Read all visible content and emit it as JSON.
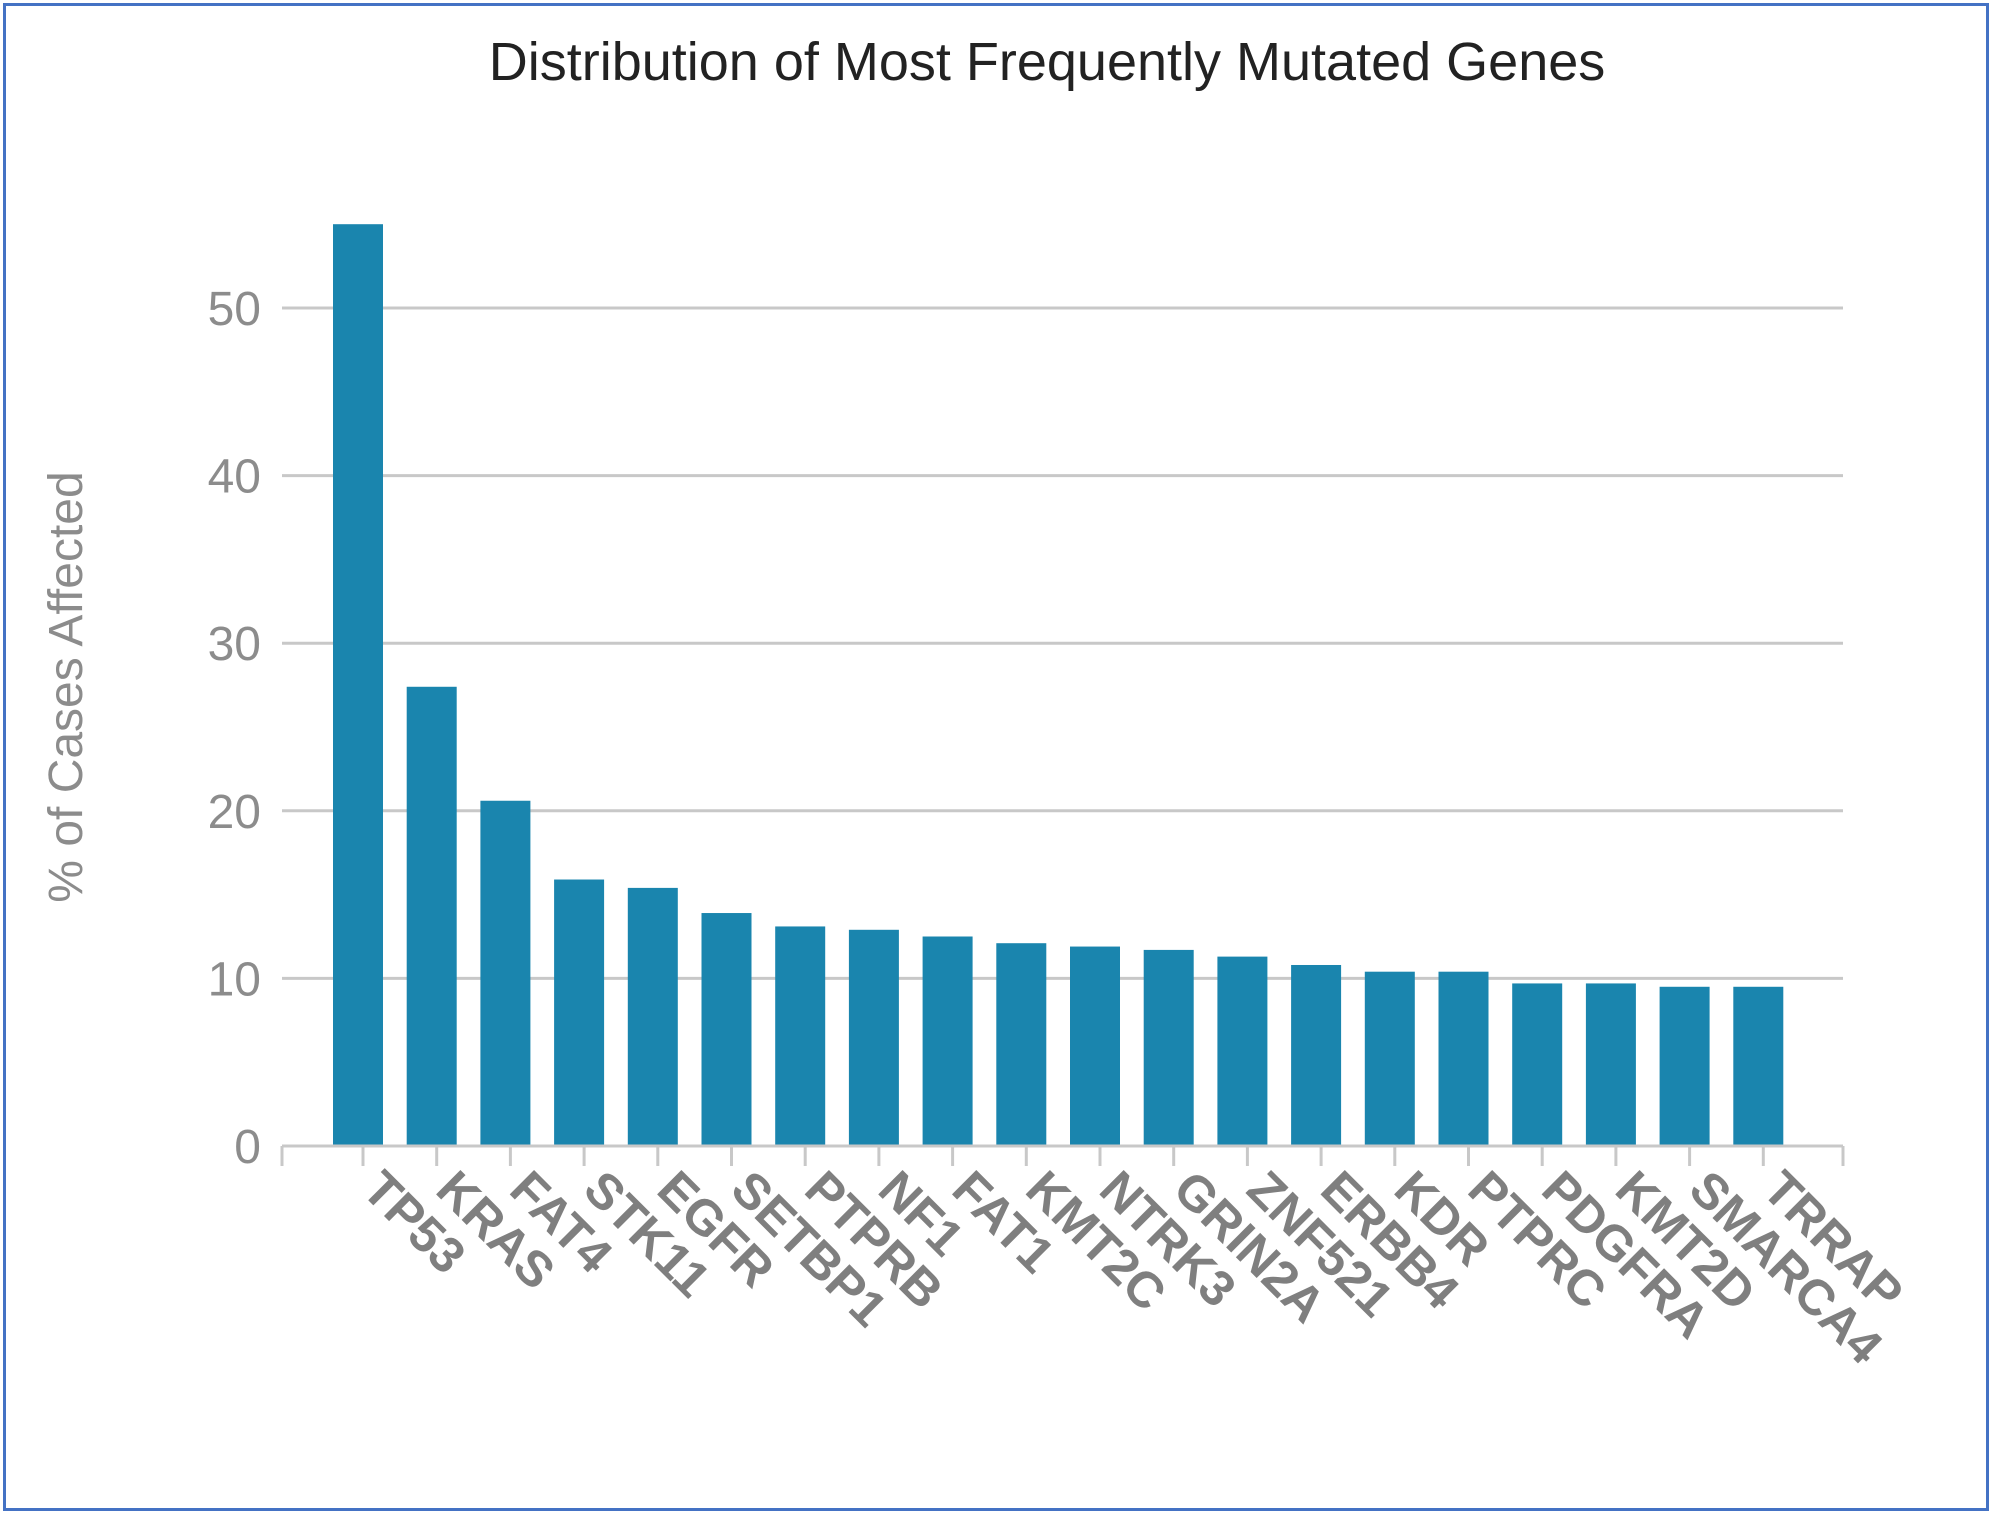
{
  "chart_data": {
    "type": "bar",
    "title": "Distribution of Most Frequently Mutated Genes",
    "xlabel": "",
    "ylabel": "% of Cases Affected",
    "ylim": [
      0,
      57
    ],
    "yticks": [
      0,
      10,
      20,
      30,
      40,
      50
    ],
    "grid": true,
    "bar_color": "#1a85ae",
    "categories": [
      "TP53",
      "KRAS",
      "FAT4",
      "STK11",
      "EGFR",
      "SETBP1",
      "PTPRB",
      "NF1",
      "FAT1",
      "KMT2C",
      "NTRK3",
      "GRIN2A",
      "ZNF521",
      "ERBB4",
      "KDR",
      "PTPRC",
      "PDGFRA",
      "KMT2D",
      "SMARCA4",
      "TRRAP"
    ],
    "values": [
      55.0,
      27.4,
      20.6,
      15.9,
      15.4,
      13.9,
      13.1,
      12.9,
      12.5,
      12.1,
      11.9,
      11.7,
      11.3,
      10.8,
      10.4,
      10.4,
      9.7,
      9.7,
      9.5,
      9.5
    ]
  }
}
